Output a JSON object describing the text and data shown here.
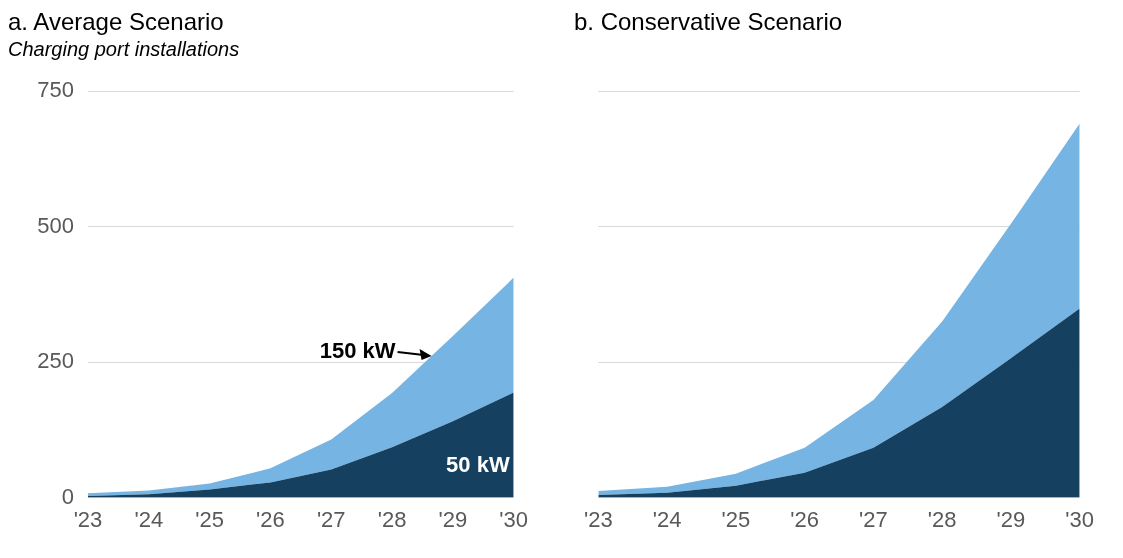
{
  "chart_data": [
    {
      "type": "area",
      "title": "a. Average Scenario",
      "ylabel": "Charging port installations",
      "categories": [
        "'23",
        "'24",
        "'25",
        "'26",
        "'27",
        "'28",
        "'29",
        "'30"
      ],
      "stacked": true,
      "series": [
        {
          "name": "50 kW",
          "color": "#16405f",
          "values": [
            3,
            6,
            15,
            28,
            52,
            93,
            141,
            194
          ]
        },
        {
          "name": "150 kW",
          "color": "#76b5e3",
          "values": [
            5,
            7,
            11,
            26,
            55,
            100,
            157,
            212
          ]
        }
      ],
      "ylim": [
        0,
        750
      ],
      "yticks": [
        0,
        250,
        500,
        750
      ],
      "grid": "y",
      "legend": false
    },
    {
      "type": "area",
      "title": "b. Conservative Scenario",
      "categories": [
        "'23",
        "'24",
        "'25",
        "'26",
        "'27",
        "'28",
        "'29",
        "'30"
      ],
      "stacked": true,
      "series": [
        {
          "color": "#16405f",
          "values": [
            5,
            9,
            22,
            46,
            92,
            167,
            257,
            349
          ]
        },
        {
          "color": "#76b5e3",
          "values": [
            7,
            11,
            22,
            46,
            88,
            158,
            248,
            341
          ]
        }
      ],
      "ylim": [
        0,
        750
      ],
      "yticks": [
        0,
        250,
        500,
        750
      ],
      "grid": "y",
      "legend": false,
      "tick_labels": "x"
    }
  ]
}
